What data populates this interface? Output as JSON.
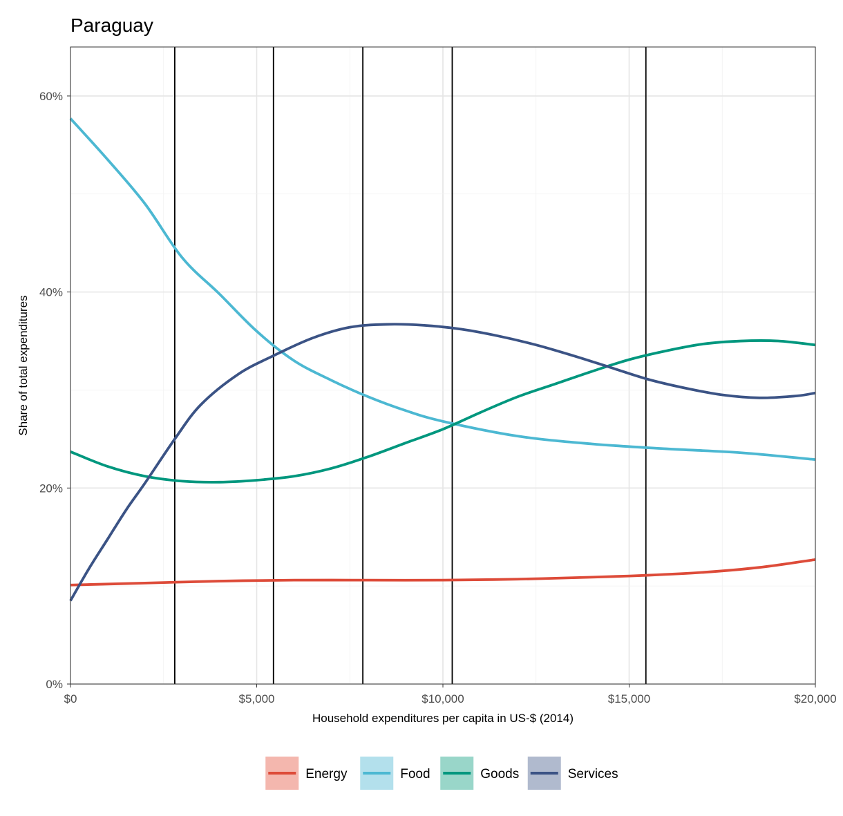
{
  "chart_data": {
    "type": "line",
    "title": "Paraguay",
    "xlabel": "Household expenditures per capita in US-$ (2014)",
    "ylabel": "Share of total expenditures",
    "xlim": [
      0,
      20000
    ],
    "ylim": [
      0,
      0.65
    ],
    "x_ticks": [
      0,
      5000,
      10000,
      15000,
      20000
    ],
    "x_tick_labels": [
      "$0",
      "$5,000",
      "$10,000",
      "$15,000",
      "$20,000"
    ],
    "y_ticks": [
      0,
      0.2,
      0.4,
      0.6
    ],
    "y_tick_labels": [
      "0%",
      "20%",
      "40%",
      "60%"
    ],
    "grid": true,
    "legend_position": "bottom",
    "vertical_lines": [
      2800,
      5450,
      7850,
      10250,
      15450
    ],
    "series": [
      {
        "name": "Energy",
        "color": "#dd4b39",
        "legend_fill": "#f4b7ae",
        "x": [
          0,
          2000,
          4000,
          6000,
          8000,
          10000,
          12000,
          14000,
          15500,
          17000,
          18500,
          20000
        ],
        "y": [
          0.101,
          0.103,
          0.105,
          0.106,
          0.106,
          0.106,
          0.107,
          0.109,
          0.111,
          0.114,
          0.119,
          0.127
        ]
      },
      {
        "name": "Food",
        "color": "#4cb8d2",
        "legend_fill": "#b3e0ec",
        "x": [
          0,
          1000,
          2000,
          3000,
          4000,
          5000,
          6000,
          7000,
          8000,
          9000,
          10000,
          12000,
          14000,
          16000,
          18000,
          20000
        ],
        "y": [
          0.577,
          0.535,
          0.49,
          0.435,
          0.398,
          0.36,
          0.33,
          0.31,
          0.293,
          0.279,
          0.268,
          0.253,
          0.245,
          0.24,
          0.236,
          0.229
        ]
      },
      {
        "name": "Goods",
        "color": "#00977e",
        "legend_fill": "#99d6c9",
        "x": [
          0,
          1000,
          2000,
          3000,
          4000,
          5000,
          6000,
          7000,
          8000,
          9000,
          10000,
          11000,
          12000,
          13000,
          14000,
          15000,
          16000,
          17000,
          18000,
          19000,
          20000
        ],
        "y": [
          0.237,
          0.222,
          0.212,
          0.207,
          0.206,
          0.208,
          0.212,
          0.22,
          0.232,
          0.246,
          0.26,
          0.277,
          0.293,
          0.306,
          0.319,
          0.331,
          0.34,
          0.347,
          0.35,
          0.35,
          0.346
        ]
      },
      {
        "name": "Services",
        "color": "#3b5385",
        "legend_fill": "#b0bace",
        "x": [
          0,
          500,
          1000,
          1500,
          2000,
          2800,
          3500,
          4500,
          5450,
          6500,
          7500,
          8500,
          9500,
          10500,
          11500,
          12500,
          13500,
          14500,
          15500,
          16500,
          17500,
          18500,
          19500,
          20000
        ],
        "y": [
          0.085,
          0.118,
          0.148,
          0.178,
          0.205,
          0.25,
          0.285,
          0.316,
          0.335,
          0.353,
          0.364,
          0.367,
          0.366,
          0.362,
          0.355,
          0.346,
          0.335,
          0.323,
          0.311,
          0.302,
          0.295,
          0.292,
          0.294,
          0.297
        ]
      }
    ]
  }
}
